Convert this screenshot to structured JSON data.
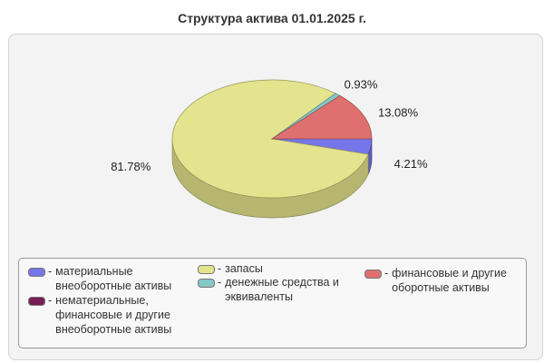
{
  "title": "Структура актива 01.01.2025 г.",
  "chart_data": {
    "type": "pie",
    "title": "Структура актива 01.01.2025 г.",
    "style": "3d",
    "legend_position": "bottom",
    "series": [
      {
        "name": "материальные внеоборотные активы",
        "value": 4.21,
        "label": "4.21%",
        "color": "#7676ea"
      },
      {
        "name": "нематериальные, финансовые и другие внеоборотные активы",
        "value": 0,
        "label": "",
        "color": "#7a1c55"
      },
      {
        "name": "запасы",
        "value": 81.78,
        "label": "81.78%",
        "color": "#e4e48e"
      },
      {
        "name": "денежные средства и эквиваленты",
        "value": 0.93,
        "label": "0.93%",
        "color": "#84c8c8"
      },
      {
        "name": "финансовые и другие оборотные активы",
        "value": 13.08,
        "label": "13.08%",
        "color": "#e07070"
      }
    ]
  }
}
